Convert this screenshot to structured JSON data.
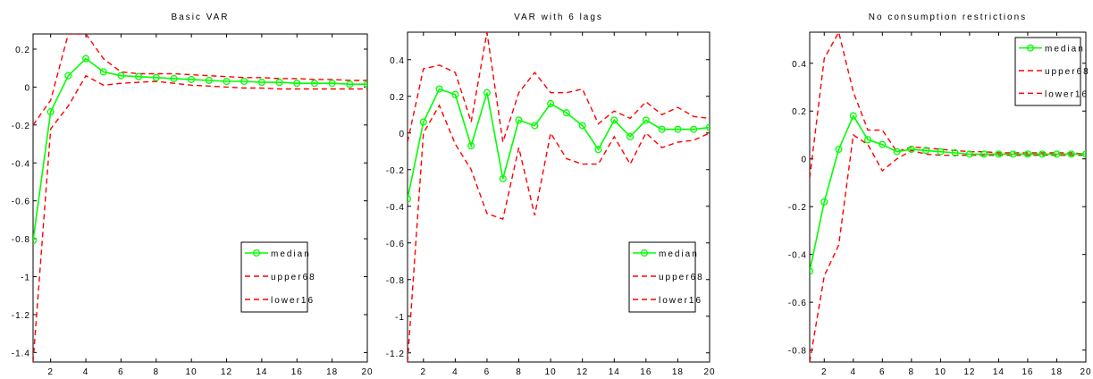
{
  "chart_data": [
    {
      "type": "line",
      "title": "Basic VAR",
      "x": [
        1,
        2,
        3,
        4,
        5,
        6,
        7,
        8,
        9,
        10,
        11,
        12,
        13,
        14,
        15,
        16,
        17,
        18,
        19,
        20
      ],
      "xlim": [
        1,
        20
      ],
      "ylim": [
        -1.45,
        0.28
      ],
      "xticks": [
        2,
        4,
        6,
        8,
        10,
        12,
        14,
        16,
        18,
        20
      ],
      "yticks": [
        0.2,
        0,
        -0.2,
        -0.4,
        -0.6,
        -0.8,
        -1,
        -1.2,
        -1.4
      ],
      "ytick_labels": [
        "0.2",
        "0",
        "-0.2",
        "-0.4",
        "-0.6",
        "-0.8",
        "-1",
        "-1.2",
        "-1.4"
      ],
      "series": [
        {
          "name": "median",
          "color": "#00ff00",
          "style": "solid-marker",
          "values": [
            -0.81,
            -0.13,
            0.06,
            0.15,
            0.08,
            0.06,
            0.055,
            0.05,
            0.045,
            0.04,
            0.035,
            0.03,
            0.03,
            0.025,
            0.025,
            0.02,
            0.02,
            0.02,
            0.015,
            0.015
          ]
        },
        {
          "name": "upper68",
          "color": "#ff0000",
          "style": "dashed",
          "values": [
            -0.2,
            -0.07,
            0.28,
            0.28,
            0.15,
            0.08,
            0.07,
            0.07,
            0.07,
            0.065,
            0.06,
            0.055,
            0.05,
            0.05,
            0.045,
            0.045,
            0.04,
            0.04,
            0.035,
            0.035
          ]
        },
        {
          "name": "lower16",
          "color": "#ff0000",
          "style": "dashed",
          "values": [
            -1.45,
            -0.22,
            -0.1,
            0.06,
            0.01,
            0.02,
            0.025,
            0.03,
            0.02,
            0.01,
            0.005,
            0.0,
            -0.005,
            -0.005,
            -0.01,
            -0.01,
            -0.01,
            -0.01,
            -0.01,
            -0.01
          ]
        }
      ],
      "legend": {
        "position": "lower-right",
        "labels": [
          "median",
          "upper68",
          "lower16"
        ]
      }
    },
    {
      "type": "line",
      "title": "VAR with 6 lags",
      "x": [
        1,
        2,
        3,
        4,
        5,
        6,
        7,
        8,
        9,
        10,
        11,
        12,
        13,
        14,
        15,
        16,
        17,
        18,
        19,
        20
      ],
      "xlim": [
        1,
        20
      ],
      "ylim": [
        -1.25,
        0.55
      ],
      "xticks": [
        2,
        4,
        6,
        8,
        10,
        12,
        14,
        16,
        18,
        20
      ],
      "yticks": [
        0.4,
        0.2,
        0,
        -0.2,
        -0.4,
        -0.6,
        -0.8,
        -1,
        -1.2
      ],
      "ytick_labels": [
        "0.4",
        "0.2",
        "0",
        "-0.2",
        "-0.4",
        "-0.6",
        "-0.8",
        "-1",
        "-1.2"
      ],
      "series": [
        {
          "name": "median",
          "color": "#00ff00",
          "style": "solid-marker",
          "values": [
            -0.36,
            0.06,
            0.24,
            0.21,
            -0.07,
            0.22,
            -0.25,
            0.07,
            0.04,
            0.16,
            0.11,
            0.04,
            -0.09,
            0.07,
            -0.02,
            0.07,
            0.02,
            0.02,
            0.02,
            0.03
          ]
        },
        {
          "name": "upper68",
          "color": "#ff0000",
          "style": "dashed",
          "values": [
            -0.05,
            0.35,
            0.37,
            0.33,
            0.06,
            0.55,
            -0.05,
            0.22,
            0.33,
            0.22,
            0.22,
            0.24,
            0.05,
            0.12,
            0.08,
            0.17,
            0.1,
            0.14,
            0.09,
            0.08
          ]
        },
        {
          "name": "lower16",
          "color": "#ff0000",
          "style": "dashed",
          "values": [
            -1.25,
            0.0,
            0.15,
            -0.06,
            -0.2,
            -0.44,
            -0.47,
            -0.08,
            -0.45,
            0.0,
            -0.14,
            -0.17,
            -0.17,
            -0.02,
            -0.17,
            0.0,
            -0.08,
            -0.05,
            -0.04,
            0.0
          ]
        }
      ],
      "legend": {
        "position": "lower-right",
        "labels": [
          "median",
          "upper68",
          "lower16"
        ]
      }
    },
    {
      "type": "line",
      "title": "No consumption restrictions",
      "x": [
        1,
        2,
        3,
        4,
        5,
        6,
        7,
        8,
        9,
        10,
        11,
        12,
        13,
        14,
        15,
        16,
        17,
        18,
        19,
        20
      ],
      "xlim": [
        1,
        20
      ],
      "ylim": [
        -0.85,
        0.53
      ],
      "xticks": [
        2,
        4,
        6,
        8,
        10,
        12,
        14,
        16,
        18,
        20
      ],
      "yticks": [
        0.4,
        0.2,
        0,
        -0.2,
        -0.4,
        -0.6,
        -0.8
      ],
      "ytick_labels": [
        "0.4",
        "0.2",
        "0",
        "-0.2",
        "-0.4",
        "-0.6",
        "-0.8"
      ],
      "series": [
        {
          "name": "median",
          "color": "#00ff00",
          "style": "solid-marker",
          "values": [
            -0.47,
            -0.18,
            0.04,
            0.18,
            0.08,
            0.06,
            0.03,
            0.04,
            0.035,
            0.03,
            0.025,
            0.02,
            0.02,
            0.02,
            0.02,
            0.02,
            0.02,
            0.02,
            0.02,
            0.02
          ]
        },
        {
          "name": "upper68",
          "color": "#ff0000",
          "style": "dashed",
          "values": [
            -0.08,
            0.42,
            0.53,
            0.28,
            0.12,
            0.12,
            0.03,
            0.05,
            0.045,
            0.04,
            0.035,
            0.03,
            0.03,
            0.025,
            0.025,
            0.025,
            0.025,
            0.025,
            0.025,
            0.02
          ]
        },
        {
          "name": "lower16",
          "color": "#ff0000",
          "style": "dashed",
          "values": [
            -0.85,
            -0.49,
            -0.36,
            0.1,
            0.06,
            -0.05,
            0.0,
            0.035,
            0.02,
            0.015,
            0.015,
            0.015,
            0.015,
            0.015,
            0.015,
            0.015,
            0.015,
            0.015,
            0.015,
            0.015
          ]
        }
      ],
      "legend": {
        "position": "upper-right",
        "labels": [
          "median",
          "upper68",
          "lower16"
        ]
      }
    }
  ]
}
